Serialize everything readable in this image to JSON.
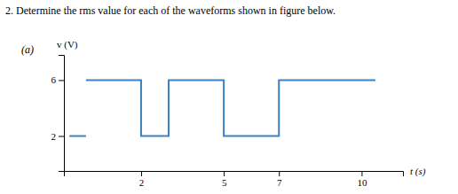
{
  "chart_data": {
    "type": "line",
    "title": "2. Determine the rms value for each of the waveforms shown in figure below.",
    "subtitle": "(a)",
    "x_label": "t (s)",
    "y_label": "v (V)",
    "xlim": [
      -0.8,
      11.5
    ],
    "ylim": [
      -0.5,
      7.8
    ],
    "xticks": [
      2,
      5,
      7,
      10
    ],
    "yticks": [
      2,
      6
    ],
    "grid": false,
    "series": [
      {
        "color": "#3B82C4",
        "x": [
          0,
          2,
          2,
          3,
          3,
          5,
          5,
          7,
          7,
          10.5
        ],
        "values": [
          6,
          6,
          2,
          2,
          6,
          6,
          2,
          2,
          6,
          6
        ]
      },
      {
        "color": "#3B82C4",
        "x": [
          -0.6,
          0
        ],
        "values": [
          2,
          2
        ]
      }
    ]
  }
}
